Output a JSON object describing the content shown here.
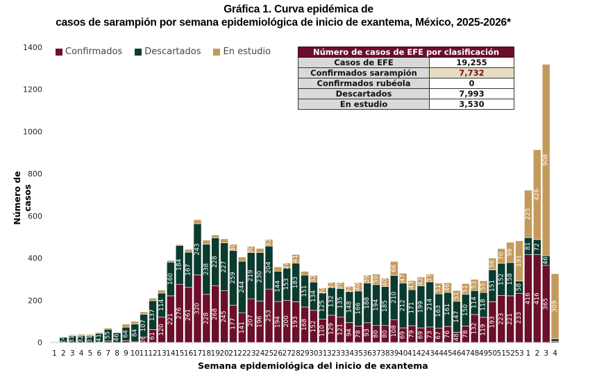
{
  "title_line1": "Gráfica 1. Curva epidémica de",
  "title_line2": "casos de sarampión por semana epidemiológica de inicio de exantema, México, 2025-2026*",
  "colors": {
    "confirmados": "#6b0f2a",
    "descartados": "#0b3b2e",
    "en_estudio": "#c49a5c",
    "table_header": "#6b0f2a",
    "highlight_cell": "#e8dcc0"
  },
  "summary_table": {
    "header": "Número de casos de EFE por clasificación",
    "rows": [
      {
        "label": "Casos de EFE",
        "value": "19,255"
      },
      {
        "label": "Confirmados sarampión",
        "value": "7,732"
      },
      {
        "label": "Confirmados rubéola",
        "value": "0"
      },
      {
        "label": "Descartados",
        "value": "7,993"
      },
      {
        "label": "En estudio",
        "value": "3,530"
      }
    ]
  },
  "chart_data": {
    "type": "bar",
    "stacked": true,
    "title": "Gráfica 1. Curva epidémica de casos de sarampión por semana epidemiológica de inicio de exantema, México, 2025-2026*",
    "xlabel": "Semana epidemiológica del inicio de exantema",
    "ylabel": "Número de casos",
    "ylim": [
      0,
      1400
    ],
    "yticks": [
      0,
      200,
      400,
      600,
      800,
      1000,
      1200,
      1400
    ],
    "grid": false,
    "legend_position": "top-left",
    "categories": [
      "1",
      "2",
      "3",
      "4",
      "5",
      "6",
      "7",
      "8",
      "9",
      "10",
      "11",
      "12",
      "13",
      "14",
      "15",
      "16",
      "17",
      "18",
      "19",
      "20",
      "21",
      "22",
      "23",
      "24",
      "25",
      "26",
      "27",
      "28",
      "29",
      "30",
      "31",
      "32",
      "33",
      "34",
      "35",
      "36",
      "37",
      "38",
      "39",
      "40",
      "41",
      "42",
      "43",
      "44",
      "45",
      "46",
      "47",
      "48",
      "49",
      "50",
      "51",
      "52",
      "53",
      "1",
      "2",
      "3",
      "4"
    ],
    "series": [
      {
        "name": "Confirmados",
        "values": [
          0,
          0,
          0,
          0,
          0,
          1,
          7,
          0,
          8,
          3,
          26,
          61,
          120,
          221,
          276,
          261,
          320,
          228,
          268,
          245,
          177,
          141,
          207,
          196,
          253,
          194,
          200,
          193,
          168,
          152,
          110,
          129,
          121,
          94,
          78,
          93,
          80,
          80,
          108,
          69,
          79,
          69,
          73,
          67,
          76,
          48,
          78,
          132,
          119,
          193,
          223,
          221,
          233,
          416,
          416,
          365,
          5
        ]
      },
      {
        "name": "Descartados",
        "values": [
          3,
          24,
          31,
          32,
          31,
          41,
          55,
          46,
          64,
          84,
          107,
          137,
          114,
          160,
          184,
          167,
          243,
          238,
          228,
          227,
          259,
          244,
          219,
          230,
          204,
          144,
          153,
          183,
          151,
          134,
          125,
          132,
          135,
          148,
          166,
          188,
          194,
          185,
          210,
          212,
          171,
          199,
          214,
          163,
          161,
          147,
          150,
          114,
          118,
          151,
          152,
          158,
          58,
          81,
          72,
          46,
          12
        ]
      },
      {
        "name": "En estudio",
        "values": [
          1,
          3,
          5,
          6,
          7,
          5,
          6,
          2,
          15,
          13,
          12,
          12,
          14,
          8,
          4,
          13,
          19,
          19,
          14,
          19,
          30,
          20,
          30,
          20,
          32,
          20,
          24,
          41,
          18,
          32,
          24,
          24,
          29,
          24,
          40,
          39,
          50,
          40,
          66,
          47,
          43,
          42,
          37,
          51,
          46,
          51,
          51,
          53,
          55,
          56,
          70,
          96,
          191,
          225,
          426,
          908,
          309
        ]
      }
    ],
    "data_labels_shown": true
  }
}
